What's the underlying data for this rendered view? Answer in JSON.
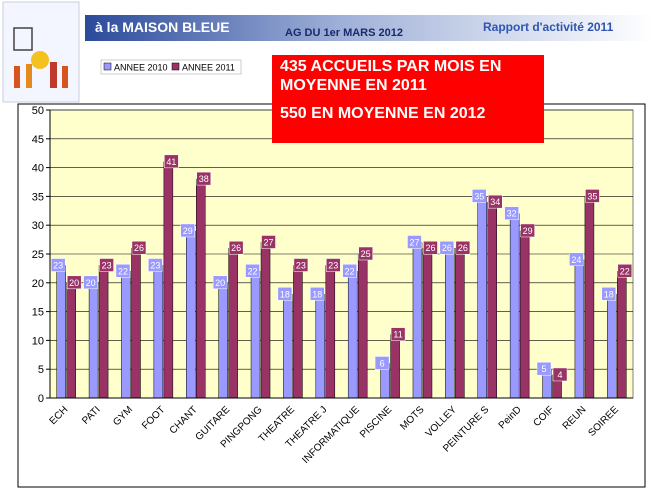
{
  "header": {
    "org": "à la MAISON BLEUE",
    "event": "AG DU 1er MARS 2012",
    "report": "Rapport d'activité 2011"
  },
  "chart_data": {
    "type": "bar",
    "annotations": [
      "435 ACCUEILS PAR MOIS EN MOYENNE EN 2011",
      "550 EN MOYENNE EN 2012"
    ],
    "categories": [
      "ECH",
      "PATI",
      "GYM",
      "FOOT",
      "CHANT",
      "GUITARE",
      "PINGPONG",
      "THEATRE",
      "THEATRE J",
      "INFORMATIQUE",
      "PISCINE",
      "MOTS",
      "VOLLEY",
      "PEINTURE S",
      "PeinD",
      "COIF",
      "REUN",
      "SOIREE"
    ],
    "series": [
      {
        "name": "ANNEE 2010",
        "color": "#9999ff",
        "values": [
          23,
          20,
          22,
          23,
          29,
          20,
          22,
          18,
          18,
          22,
          6,
          27,
          26,
          35,
          32,
          5,
          24,
          18
        ]
      },
      {
        "name": "ANNEE 2011",
        "color": "#993366",
        "values": [
          20,
          23,
          26,
          41,
          38,
          26,
          27,
          23,
          23,
          25,
          11,
          26,
          26,
          34,
          29,
          4,
          35,
          22
        ]
      }
    ],
    "ylim": [
      0,
      50
    ],
    "yticks": [
      0,
      5,
      10,
      15,
      20,
      25,
      30,
      35,
      40,
      45,
      50
    ],
    "grid": true,
    "legend": "top-left",
    "plot_background": "#ffffcc"
  }
}
